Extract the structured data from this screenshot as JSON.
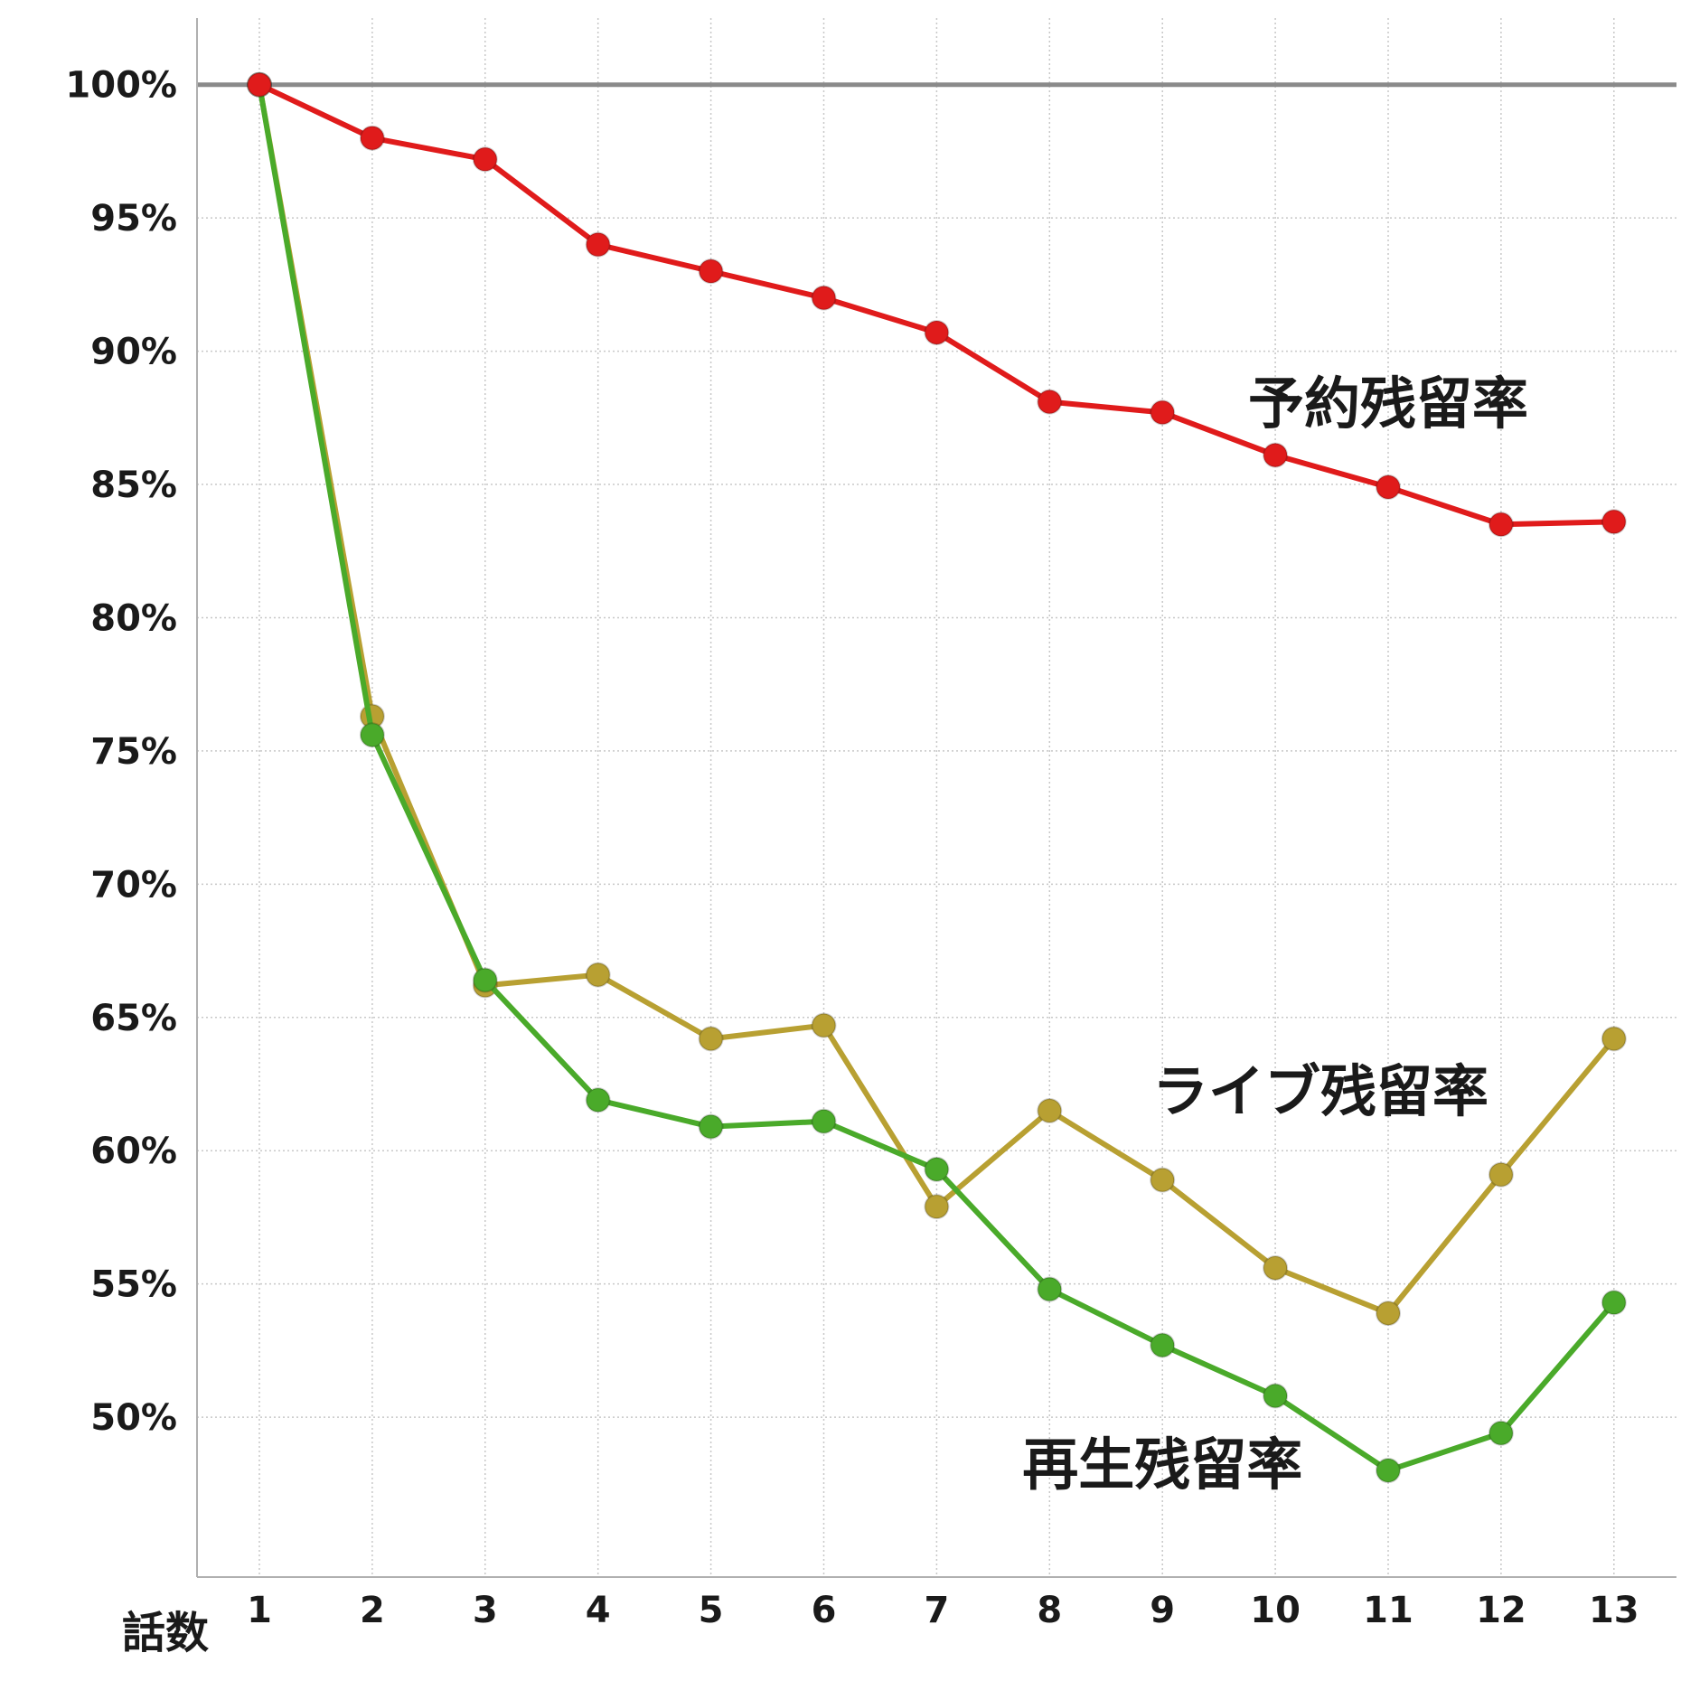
{
  "chart_data": {
    "type": "line",
    "xlabel": "話数",
    "ylabel": "",
    "x": [
      1,
      2,
      3,
      4,
      5,
      6,
      7,
      8,
      9,
      10,
      11,
      12,
      13
    ],
    "ylim": [
      44,
      102.5
    ],
    "yticks": [
      50,
      55,
      60,
      65,
      70,
      75,
      80,
      85,
      90,
      95,
      100
    ],
    "ytick_labels": [
      "50%",
      "55%",
      "60%",
      "65%",
      "70%",
      "75%",
      "80%",
      "85%",
      "90%",
      "95%",
      "100%"
    ],
    "reference_line": 100,
    "grid": true,
    "series": [
      {
        "name": "予約残留率",
        "color": "#e01b1b",
        "values": [
          100,
          98.0,
          97.2,
          94.0,
          93.0,
          92.0,
          90.7,
          88.1,
          87.7,
          86.1,
          84.9,
          83.5,
          83.6
        ],
        "label_pos": [
          11.0,
          87.3
        ]
      },
      {
        "name": "ライブ残留率",
        "color": "#b8a032",
        "values": [
          100,
          76.3,
          66.2,
          66.6,
          64.2,
          64.7,
          57.9,
          61.5,
          58.9,
          55.6,
          53.9,
          59.1,
          64.2
        ],
        "label_pos": [
          10.4,
          61.5
        ]
      },
      {
        "name": "再生残留率",
        "color": "#4aaa2a",
        "values": [
          100,
          75.6,
          66.4,
          61.9,
          60.9,
          61.1,
          59.3,
          54.8,
          52.7,
          50.8,
          48.0,
          49.4,
          54.3
        ],
        "label_pos": [
          9.0,
          47.5
        ]
      }
    ]
  }
}
